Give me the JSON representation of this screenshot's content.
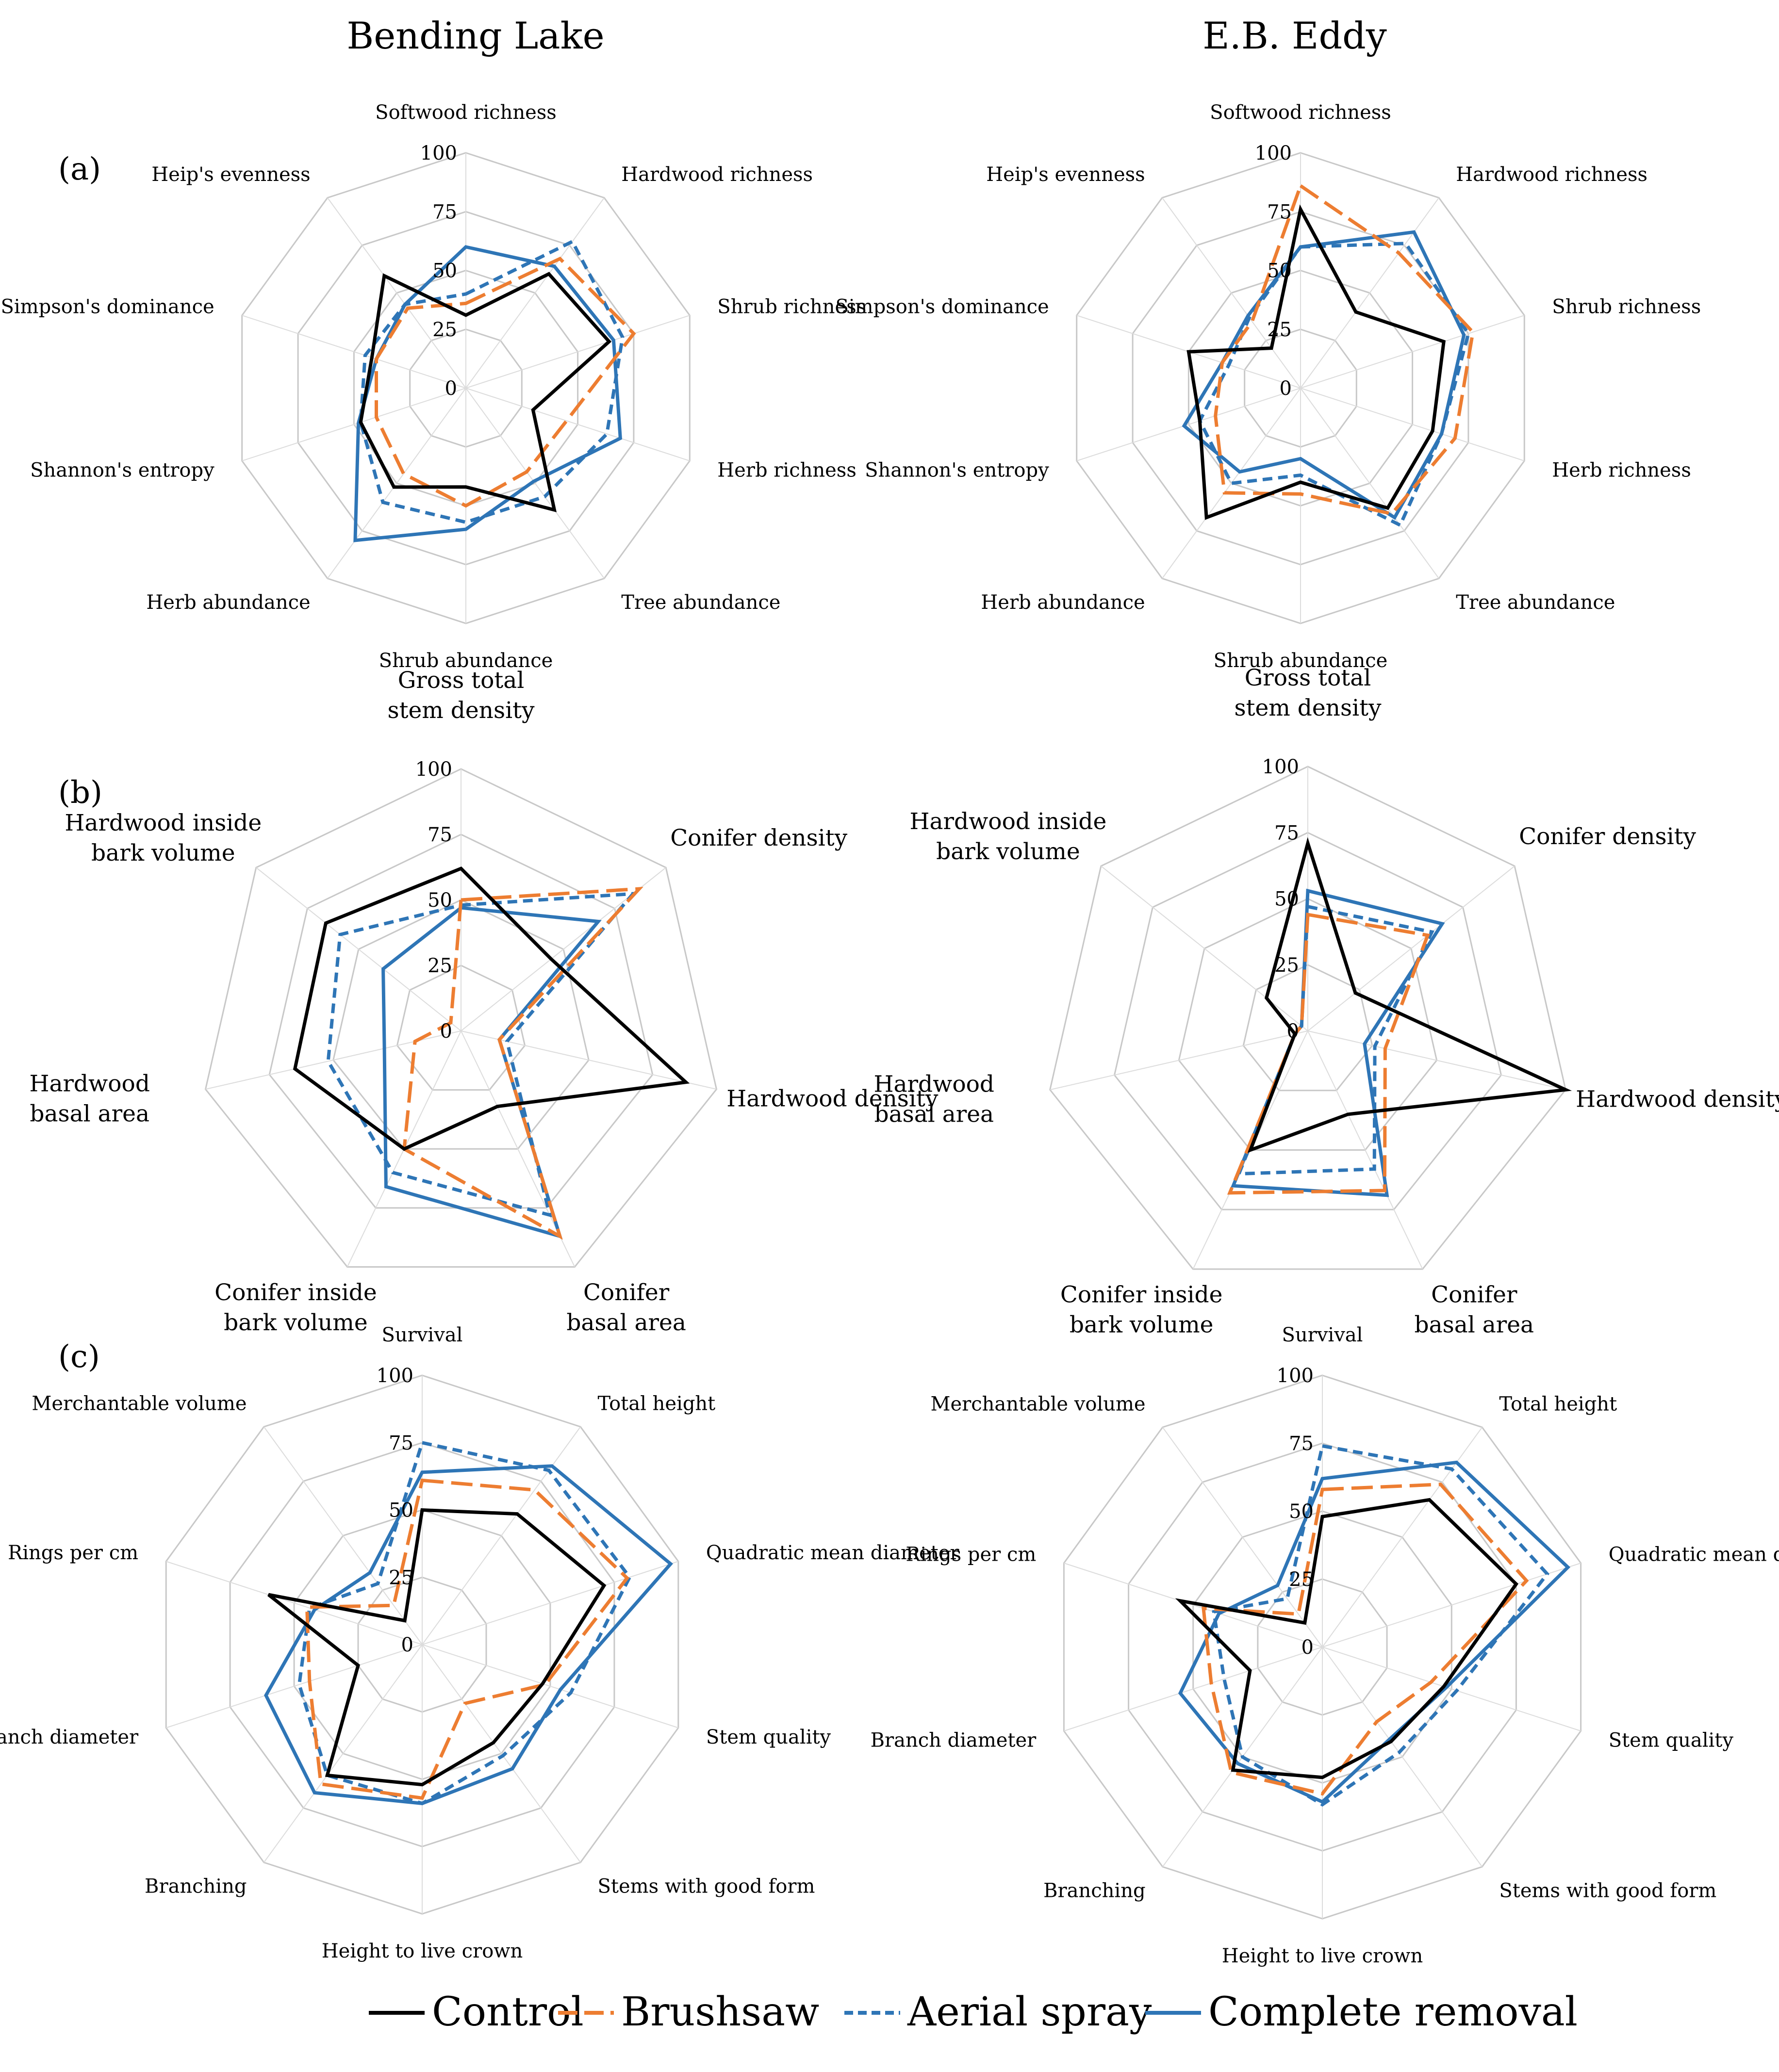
{
  "column_titles": [
    "Bending Lake",
    "E.B. Eddy"
  ],
  "panel_labels": [
    "(a)",
    "(b)",
    "(c)"
  ],
  "colors": {
    "control": "#000000",
    "brushsaw": "#ED7D31",
    "aerial_spray": "#2E75B6",
    "complete_removal": "#2E75B6"
  },
  "legend": [
    {
      "label": "Control",
      "color": "#000000",
      "dash": "solid"
    },
    {
      "label": "Brushsaw",
      "color": "#ED7D31",
      "dash": "longdash"
    },
    {
      "label": "Aerial spray",
      "color": "#2E75B6",
      "dash": "dashed"
    },
    {
      "label": "Complete removal",
      "color": "#2E75B6",
      "dash": "solid"
    }
  ],
  "chart_data": [
    {
      "type": "radar",
      "site": "Bending Lake",
      "panel": "(a)",
      "axes": [
        "Softwood richness",
        "Hardwood richness",
        "Shrub richness",
        "Herb richness",
        "Tree abundance",
        "Shrub abundance",
        "Herb abundance",
        "Shannon's entropy",
        "Simpson's dominance",
        "Heip's evenness"
      ],
      "ticks": [
        "0",
        "25",
        "50",
        "75",
        "100"
      ],
      "range": [
        0,
        100
      ],
      "series": [
        {
          "name": "Control",
          "values": [
            31,
            60,
            64,
            30,
            64,
            42,
            52,
            47,
            42,
            59
          ]
        },
        {
          "name": "Brushsaw",
          "values": [
            36,
            68,
            75,
            45,
            44,
            50,
            45,
            40,
            40,
            42
          ]
        },
        {
          "name": "Aerial spray",
          "values": [
            40,
            77,
            70,
            63,
            57,
            57,
            60,
            47,
            45,
            44
          ]
        },
        {
          "name": "Complete removal",
          "values": [
            60,
            64,
            66,
            69,
            49,
            60,
            80,
            48,
            40,
            44
          ]
        }
      ]
    },
    {
      "type": "radar",
      "site": "E.B. Eddy",
      "panel": "(a)",
      "axes": [
        "Softwood richness",
        "Hardwood richness",
        "Shrub richness",
        "Herb richness",
        "Tree abundance",
        "Shrub abundance",
        "Herb abundance",
        "Shannon's entropy",
        "Simpson's dominance",
        "Heip's evenness"
      ],
      "ticks": [
        "0",
        "25",
        "50",
        "75",
        "100"
      ],
      "range": [
        0,
        100
      ],
      "series": [
        {
          "name": "Control",
          "values": [
            76,
            40,
            64,
            59,
            63,
            40,
            68,
            45,
            50,
            21
          ]
        },
        {
          "name": "Brushsaw",
          "values": [
            86,
            71,
            77,
            69,
            66,
            45,
            55,
            38,
            35,
            35
          ]
        },
        {
          "name": "Aerial spray",
          "values": [
            60,
            76,
            75,
            63,
            72,
            37,
            50,
            45,
            32,
            37
          ]
        },
        {
          "name": "Complete removal",
          "values": [
            60,
            82,
            73,
            63,
            68,
            30,
            44,
            52,
            35,
            38
          ]
        }
      ]
    },
    {
      "type": "radar",
      "site": "Bending Lake",
      "panel": "(b)",
      "axes": [
        "Gross total stem density",
        "Conifer density",
        "Hardwood density",
        "Conifer basal area",
        "Conifer inside bark volume",
        "Hardwood basal area",
        "Hardwood inside bark volume"
      ],
      "ticks": [
        "0",
        "25",
        "50",
        "75",
        "100"
      ],
      "range": [
        0,
        100
      ],
      "series": [
        {
          "name": "Control",
          "values": [
            62,
            44,
            88,
            32,
            50,
            65,
            66
          ]
        },
        {
          "name": "Brushsaw",
          "values": [
            50,
            87,
            15,
            87,
            50,
            18,
            5
          ]
        },
        {
          "name": "Aerial spray",
          "values": [
            48,
            84,
            18,
            78,
            60,
            52,
            59
          ]
        },
        {
          "name": "Complete removal",
          "values": [
            47,
            67,
            15,
            87,
            66,
            30,
            38
          ]
        }
      ]
    },
    {
      "type": "radar",
      "site": "E.B. Eddy",
      "panel": "(b)",
      "axes": [
        "Gross total stem density",
        "Conifer density",
        "Hardwood density",
        "Conifer basal area",
        "Conifer inside bark volume",
        "Hardwood basal area",
        "Hardwood inside bark volume"
      ],
      "ticks": [
        "0",
        "25",
        "50",
        "75",
        "100"
      ],
      "range": [
        0,
        100
      ],
      "series": [
        {
          "name": "Control",
          "values": [
            71,
            23,
            100,
            35,
            50,
            5,
            20
          ]
        },
        {
          "name": "Brushsaw",
          "values": [
            44,
            58,
            30,
            67,
            68,
            5,
            3
          ]
        },
        {
          "name": "Aerial spray",
          "values": [
            47,
            60,
            26,
            58,
            60,
            5,
            3
          ]
        },
        {
          "name": "Complete removal",
          "values": [
            53,
            65,
            22,
            69,
            65,
            5,
            3
          ]
        }
      ]
    },
    {
      "type": "radar",
      "site": "Bending Lake",
      "panel": "(c)",
      "axes": [
        "Survival",
        "Total height",
        "Quadratic mean diameter",
        "Stem quality",
        "Stems with good form",
        "Height to live crown",
        "Branching",
        "Branch diameter",
        "Rings per cm",
        "Merchantable volume"
      ],
      "ticks": [
        "0",
        "25",
        "50",
        "75",
        "100"
      ],
      "range": [
        0,
        100
      ],
      "series": [
        {
          "name": "Control",
          "values": [
            50,
            60,
            71,
            47,
            45,
            52,
            60,
            25,
            60,
            11
          ]
        },
        {
          "name": "Brushsaw",
          "values": [
            61,
            71,
            80,
            48,
            27,
            57,
            64,
            44,
            45,
            18
          ]
        },
        {
          "name": "Aerial spray",
          "values": [
            75,
            80,
            81,
            58,
            51,
            59,
            60,
            48,
            44,
            28
          ]
        },
        {
          "name": "Complete removal",
          "values": [
            64,
            82,
            97,
            54,
            57,
            59,
            68,
            61,
            42,
            33
          ]
        }
      ]
    },
    {
      "type": "radar",
      "site": "E.B. Eddy",
      "panel": "(c)",
      "axes": [
        "Survival",
        "Total height",
        "Quadratic mean diameter",
        "Stem quality",
        "Stems with good form",
        "Height to live crown",
        "Branching",
        "Branch diameter",
        "Rings per cm",
        "Merchantable volume"
      ],
      "ticks": [
        "0",
        "25",
        "50",
        "75",
        "100"
      ],
      "range": [
        0,
        100
      ],
      "series": [
        {
          "name": "Control",
          "values": [
            48,
            67,
            75,
            47,
            43,
            48,
            56,
            28,
            55,
            11
          ]
        },
        {
          "name": "Brushsaw",
          "values": [
            58,
            74,
            79,
            42,
            34,
            54,
            57,
            43,
            46,
            15
          ]
        },
        {
          "name": "Aerial spray",
          "values": [
            74,
            81,
            87,
            52,
            48,
            58,
            50,
            38,
            42,
            22
          ]
        },
        {
          "name": "Complete removal",
          "values": [
            62,
            84,
            95,
            48,
            42,
            57,
            53,
            55,
            40,
            28
          ]
        }
      ]
    }
  ]
}
